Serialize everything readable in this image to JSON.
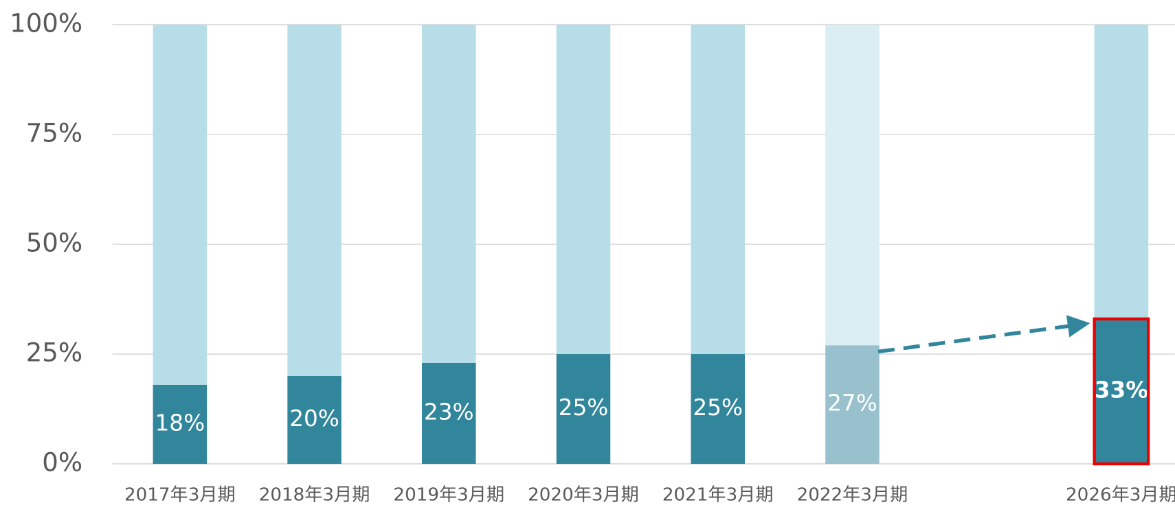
{
  "chart_data": {
    "type": "stacked_bar_100",
    "categories": [
      "2017年3月期",
      "2018年3月期",
      "2019年3月期",
      "2020年3月期",
      "2021年3月期",
      "2022年3月期",
      null,
      "2026年3月期"
    ],
    "series": [
      {
        "values": [
          18,
          20,
          23,
          25,
          25,
          27,
          null,
          33
        ],
        "value_labels": [
          "18%",
          "20%",
          "23%",
          "25%",
          "25%",
          "27%",
          null,
          "33%"
        ],
        "colors": [
          "#31869b",
          "#31869b",
          "#31869b",
          "#31869b",
          "#31869b",
          "#98c1cd",
          null,
          "#31869b"
        ]
      },
      {
        "values": [
          82,
          80,
          77,
          75,
          75,
          73,
          null,
          67
        ],
        "colors": [
          "#b7dde8",
          "#b7dde8",
          "#b7dde8",
          "#b7dde8",
          "#b7dde8",
          "#dbeef3",
          null,
          "#b7dde8"
        ]
      }
    ],
    "ylim": [
      0,
      100
    ],
    "yticks": [
      {
        "value": 0,
        "label": "0%"
      },
      {
        "value": 25,
        "label": "25%"
      },
      {
        "value": 50,
        "label": "50%"
      },
      {
        "value": 75,
        "label": "75%"
      },
      {
        "value": 100,
        "label": "100%"
      }
    ],
    "grid": true,
    "highlight": {
      "category_index": 7,
      "color": "#ee0000"
    }
  }
}
